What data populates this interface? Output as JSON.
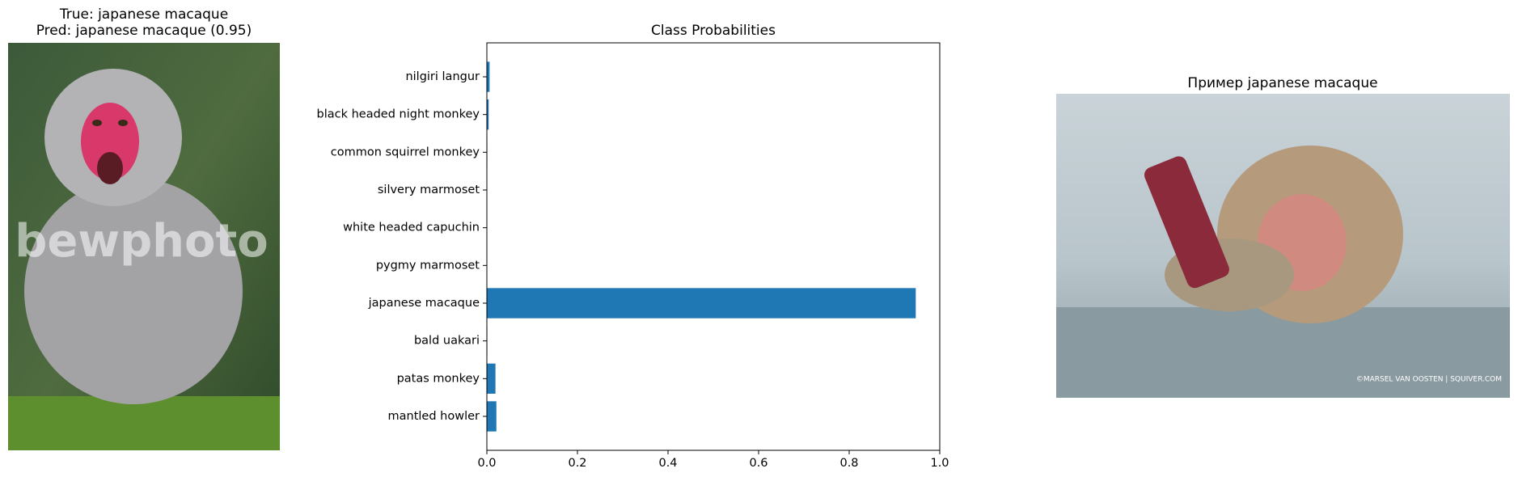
{
  "left_image": {
    "title_lines": [
      "True: japanese macaque",
      "Pred: japanese macaque (0.95)"
    ],
    "watermark": "bewphoto"
  },
  "chart_data": {
    "type": "barh",
    "title": "Class Probabilities",
    "categories": [
      "nilgiri langur",
      "black headed night monkey",
      "common squirrel monkey",
      "silvery marmoset",
      "white headed capuchin",
      "pygmy marmoset",
      "japanese macaque",
      "bald uakari",
      "patas monkey",
      "mantled howler"
    ],
    "values": [
      0.006,
      0.004,
      0.001,
      0.0005,
      0.0005,
      0.0005,
      0.947,
      0.001,
      0.019,
      0.021
    ],
    "color": "#1f77b4",
    "xlim": [
      0,
      1
    ],
    "xticks": [
      {
        "value": 0,
        "label": "0.0"
      },
      0.2,
      0.4,
      0.6,
      0.8,
      {
        "value": 1,
        "label": "1.0"
      }
    ]
  },
  "right_image": {
    "title": "Пример japanese macaque",
    "credit": "©MARSEL VAN OOSTEN | SQUIVER.COM"
  }
}
